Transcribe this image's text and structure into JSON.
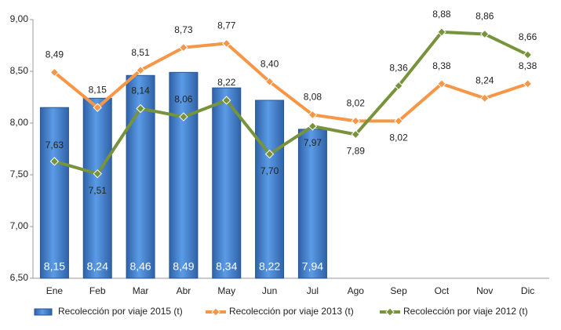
{
  "chart_data": {
    "type": "bar",
    "categories": [
      "Ene",
      "Feb",
      "Mar",
      "Abr",
      "May",
      "Jun",
      "Jul",
      "Ago",
      "Sep",
      "Oct",
      "Nov",
      "Dic"
    ],
    "series": [
      {
        "name": "Recolección por viaje 2015 (t)",
        "type": "bar",
        "color": "#3f7fd0",
        "values": [
          8.15,
          8.24,
          8.46,
          8.49,
          8.34,
          8.22,
          7.94,
          null,
          null,
          null,
          null,
          null
        ],
        "value_labels": [
          "8,15",
          "8,24",
          "8,46",
          "8,49",
          "8,34",
          "8,22",
          "7,94",
          null,
          null,
          null,
          null,
          null
        ]
      },
      {
        "name": "Recolección por viaje 2013 (t)",
        "type": "line",
        "color": "#f79646",
        "values": [
          8.49,
          8.15,
          8.51,
          8.73,
          8.77,
          8.4,
          8.08,
          8.02,
          8.02,
          8.38,
          8.24,
          8.38
        ],
        "value_labels": [
          "8,49",
          "8,15",
          "8,51",
          "8,73",
          "8,77",
          "8,40",
          "8,08",
          "8,02",
          "8,02",
          "8,38",
          "8,24",
          "8,38"
        ]
      },
      {
        "name": "Recolección por viaje 2012 (t)",
        "type": "line",
        "color": "#77933c",
        "values": [
          7.63,
          7.51,
          8.14,
          8.06,
          8.22,
          7.7,
          7.97,
          7.89,
          8.36,
          8.88,
          8.86,
          8.66
        ],
        "value_labels": [
          "7,63",
          "7,51",
          "8,14",
          "8,06",
          "8,22",
          "7,70",
          "7,97",
          "7,89",
          "8,36",
          "8,88",
          "8,86",
          "8,66"
        ]
      }
    ],
    "ylim": [
      6.5,
      9.0
    ],
    "yticks": [
      {
        "value": 6.5,
        "label": "6,50"
      },
      {
        "value": 7.0,
        "label": "7,00"
      },
      {
        "value": 7.5,
        "label": "7,50"
      },
      {
        "value": 8.0,
        "label": "8,00"
      },
      {
        "value": 8.5,
        "label": "8,50"
      },
      {
        "value": 9.0,
        "label": "9,00"
      }
    ],
    "grid": false,
    "legend": "bottom"
  }
}
